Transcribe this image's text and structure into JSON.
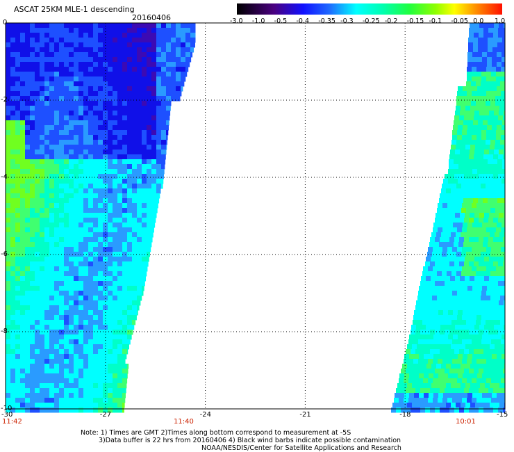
{
  "title": "ASCAT 25KM MLE-1 descending",
  "date": "20160406",
  "colorbar": {
    "labels": [
      "-3.0",
      "-1.0",
      "-0.5",
      "-0.4",
      "-0.35",
      "-0.3",
      "-0.25",
      "-0.2",
      "-0.15",
      "-0.1",
      "-0.05",
      "0.0",
      "1.0"
    ]
  },
  "map": {
    "lon_range": [
      -30,
      -15
    ],
    "lat_range": [
      0,
      -10
    ],
    "x_ticks": [
      "-30",
      "-27",
      "-24",
      "-21",
      "-18",
      "-15"
    ],
    "y_ticks": [
      "0",
      "-2",
      "-4",
      "-6",
      "-8",
      "-10"
    ],
    "grid_lons": [
      -27,
      -24,
      -21,
      -18
    ],
    "grid_lats": [
      -2,
      -4,
      -6,
      -8
    ],
    "grid": true,
    "pass_times": [
      "11:42",
      "11:40",
      "10:01"
    ],
    "colors": {
      "deep_blue": "#1010e8",
      "blue": "#1e50ff",
      "light_blue": "#2a9bff",
      "cyan": "#00ffff",
      "aqua": "#00ffc8",
      "green": "#40ff70",
      "bright_green": "#70ff20",
      "purple": "#3c0ab4",
      "time_label": "#cc2200"
    }
  },
  "notes": {
    "line1": "Note: 1) Times are GMT 2)Times along bottom correspond to measurement at -5S",
    "line2": "3)Data buffer is 22 hrs from 20160406 4) Black wind barbs indicate possible contamination",
    "line3": "NOAA/NESDIS/Center for Satellite Applications and Research"
  }
}
